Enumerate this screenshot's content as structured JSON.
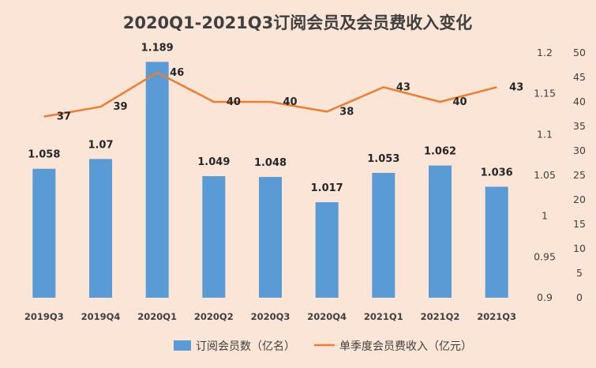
{
  "chart_data": {
    "type": "bar+line",
    "title": "2020Q1-2021Q3订阅会员及会员费收入变化",
    "categories": [
      "2019Q3",
      "2019Q4",
      "2020Q1",
      "2020Q2",
      "2020Q3",
      "2020Q4",
      "2021Q1",
      "2021Q2",
      "2021Q3"
    ],
    "series": [
      {
        "name": "订阅会员数（亿名）",
        "type": "bar",
        "axis": "left",
        "color": "#5b9bd5",
        "values": [
          1.058,
          1.07,
          1.189,
          1.049,
          1.048,
          1.017,
          1.053,
          1.062,
          1.036
        ],
        "labels": [
          "1.058",
          "1.07",
          "1.189",
          "1.049",
          "1.048",
          "1.017",
          "1.053",
          "1.062",
          "1.036"
        ]
      },
      {
        "name": "单季度会员费收入（亿元）",
        "type": "line",
        "axis": "right",
        "color": "#ed7d31",
        "values": [
          37,
          39,
          46,
          40,
          40,
          38,
          43,
          40,
          43
        ],
        "labels": [
          "37",
          "39",
          "46",
          "40",
          "40",
          "38",
          "43",
          "40",
          "43"
        ]
      }
    ],
    "left_axis": {
      "min": 0.9,
      "max": 1.2,
      "ticks": [
        "0.9",
        "0.95",
        "1",
        "1.05",
        "1.1",
        "1.15",
        "1.2"
      ]
    },
    "right_axis": {
      "min": 0,
      "max": 50,
      "ticks": [
        "0",
        "5",
        "10",
        "15",
        "20",
        "25",
        "30",
        "35",
        "40",
        "45",
        "50"
      ]
    },
    "legend_position": "bottom"
  }
}
